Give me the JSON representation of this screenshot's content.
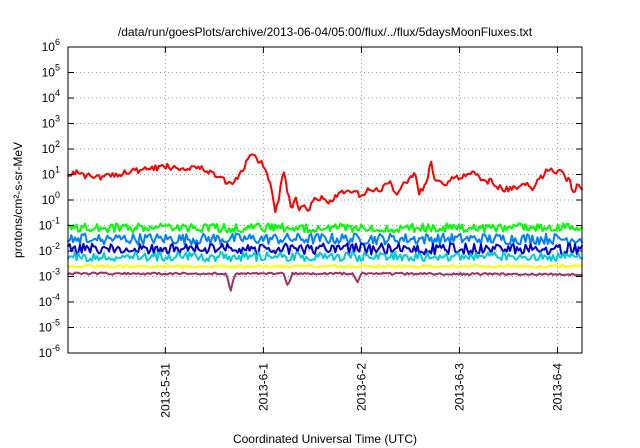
{
  "chart_data": {
    "type": "line",
    "title": "/data/run/goesPlots/archive/2013-06-04/05:00/flux/../flux/5daysMoonFluxes.txt",
    "xlabel": "Coordinated Universal Time (UTC)",
    "ylabel": "protons/cm²-s-sr-MeV",
    "x_scale": "time",
    "xlim": [
      "2013-05-30T00:10",
      "2013-06-04T06:00"
    ],
    "x_ticks": [
      {
        "value": "2013-05-31T00:00",
        "label": "2013-5-31"
      },
      {
        "value": "2013-06-01T00:00",
        "label": "2013-6-1"
      },
      {
        "value": "2013-06-02T00:00",
        "label": "2013-6-2"
      },
      {
        "value": "2013-06-03T00:00",
        "label": "2013-6-3"
      },
      {
        "value": "2013-06-04T00:00",
        "label": "2013-6-4"
      }
    ],
    "y_scale": "log",
    "ylim": [
      1e-06,
      1000000.0
    ],
    "y_ticks": [
      {
        "value": 1e-06,
        "base": "10",
        "exp": "-6"
      },
      {
        "value": 1e-05,
        "base": "10",
        "exp": "-5"
      },
      {
        "value": 0.0001,
        "base": "10",
        "exp": "-4"
      },
      {
        "value": 0.001,
        "base": "10",
        "exp": "-3"
      },
      {
        "value": 0.01,
        "base": "10",
        "exp": "-2"
      },
      {
        "value": 0.1,
        "base": "10",
        "exp": "-1"
      },
      {
        "value": 1,
        "base": "10",
        "exp": "0"
      },
      {
        "value": 10,
        "base": "10",
        "exp": "1"
      },
      {
        "value": 100,
        "base": "10",
        "exp": "2"
      },
      {
        "value": 1000.0,
        "base": "10",
        "exp": "3"
      },
      {
        "value": 10000.0,
        "base": "10",
        "exp": "4"
      },
      {
        "value": 100000.0,
        "base": "10",
        "exp": "5"
      },
      {
        "value": 1000000.0,
        "base": "10",
        "exp": "6"
      }
    ],
    "grid": true,
    "series": [
      {
        "color": "#ff0000",
        "x": [
          "2013-05-30T00:10",
          "2013-05-30T02:00",
          "2013-05-30T04:00",
          "2013-05-30T06:00",
          "2013-05-30T08:00",
          "2013-05-30T10:00",
          "2013-05-30T12:00",
          "2013-05-30T14:00",
          "2013-05-30T16:00",
          "2013-05-30T18:00",
          "2013-05-30T20:00",
          "2013-05-30T22:00",
          "2013-05-31T00:00",
          "2013-05-31T02:00",
          "2013-05-31T04:00",
          "2013-05-31T06:00",
          "2013-05-31T08:00",
          "2013-05-31T10:00",
          "2013-05-31T12:00",
          "2013-05-31T14:00",
          "2013-05-31T15:00",
          "2013-05-31T16:00",
          "2013-05-31T17:00",
          "2013-05-31T18:00",
          "2013-05-31T19:00",
          "2013-05-31T20:00",
          "2013-05-31T21:00",
          "2013-05-31T22:00",
          "2013-05-31T23:00",
          "2013-06-01T00:00",
          "2013-06-01T01:00",
          "2013-06-01T02:00",
          "2013-06-01T03:00",
          "2013-06-01T04:00",
          "2013-06-01T05:00",
          "2013-06-01T06:00",
          "2013-06-01T07:00",
          "2013-06-01T08:00",
          "2013-06-01T09:00",
          "2013-06-01T10:00",
          "2013-06-01T11:00",
          "2013-06-01T12:00",
          "2013-06-01T14:00",
          "2013-06-01T16:00",
          "2013-06-01T18:00",
          "2013-06-01T20:00",
          "2013-06-01T22:00",
          "2013-06-02T00:00",
          "2013-06-02T02:00",
          "2013-06-02T04:00",
          "2013-06-02T06:00",
          "2013-06-02T07:00",
          "2013-06-02T08:00",
          "2013-06-02T09:00",
          "2013-06-02T10:00",
          "2013-06-02T11:00",
          "2013-06-02T12:00",
          "2013-06-02T13:00",
          "2013-06-02T14:00",
          "2013-06-02T15:00",
          "2013-06-02T16:00",
          "2013-06-02T17:00",
          "2013-06-02T18:00",
          "2013-06-02T20:00",
          "2013-06-02T22:00",
          "2013-06-03T00:00",
          "2013-06-03T02:00",
          "2013-06-03T04:00",
          "2013-06-03T06:00",
          "2013-06-03T08:00",
          "2013-06-03T10:00",
          "2013-06-03T12:00",
          "2013-06-03T14:00",
          "2013-06-03T16:00",
          "2013-06-03T18:00",
          "2013-06-03T20:00",
          "2013-06-03T22:00",
          "2013-06-04T00:00",
          "2013-06-04T01:00",
          "2013-06-04T02:00",
          "2013-06-04T03:00",
          "2013-06-04T04:00",
          "2013-06-04T05:00",
          "2013-06-04T06:00"
        ],
        "values": [
          10,
          13,
          8,
          10,
          7,
          10,
          10,
          12,
          15,
          13,
          17,
          18,
          20,
          20,
          17,
          20,
          18,
          15,
          10,
          6,
          5,
          4,
          5,
          8,
          15,
          40,
          60,
          65,
          30,
          25,
          10,
          3,
          0.3,
          2,
          15,
          1.5,
          0.5,
          1,
          0.4,
          0.5,
          0.3,
          1,
          1.2,
          0.8,
          1.5,
          2,
          2,
          1.5,
          2.5,
          2.2,
          4,
          5,
          2.5,
          1.5,
          5,
          4,
          8,
          12,
          2,
          3,
          4,
          50,
          5,
          4,
          6,
          8,
          12,
          10,
          6,
          5,
          3,
          2.5,
          3,
          4,
          3,
          8,
          18,
          12,
          15,
          8,
          5,
          2,
          5,
          2
        ],
        "scatter": 0.12
      },
      {
        "color": "#00ff00",
        "x": [
          "2013-05-30T00:10",
          "2013-06-04T06:00"
        ],
        "values": [
          0.08,
          0.08
        ],
        "scatter": 0.18
      },
      {
        "color": "#0080ff",
        "x": [
          "2013-05-30T00:10",
          "2013-06-04T06:00"
        ],
        "values": [
          0.03,
          0.03
        ],
        "scatter": 0.22
      },
      {
        "color": "#0000cc",
        "x": [
          "2013-05-30T00:10",
          "2013-06-04T06:00"
        ],
        "values": [
          0.012,
          0.012
        ],
        "scatter": 0.22
      },
      {
        "color": "#00cccc",
        "x": [
          "2013-05-30T00:10",
          "2013-06-04T06:00"
        ],
        "values": [
          0.006,
          0.006
        ],
        "scatter": 0.18
      },
      {
        "color": "#ffff00",
        "x": [
          "2013-05-30T00:10",
          "2013-06-04T06:00"
        ],
        "values": [
          0.0025,
          0.0025
        ],
        "scatter": 0.05
      },
      {
        "color": "#993366",
        "x": [
          "2013-05-30T00:10",
          "2013-05-31T15:00",
          "2013-05-31T16:00",
          "2013-05-31T17:00",
          "2013-06-01T05:00",
          "2013-06-01T06:00",
          "2013-06-01T07:00",
          "2013-06-01T22:00",
          "2013-06-01T23:00",
          "2013-06-02T00:00",
          "2013-06-04T06:00"
        ],
        "values": [
          0.0013,
          0.0013,
          0.00025,
          0.0013,
          0.0013,
          0.0004,
          0.0013,
          0.0013,
          0.0006,
          0.0013,
          0.0012
        ],
        "scatter": 0.04
      }
    ]
  }
}
